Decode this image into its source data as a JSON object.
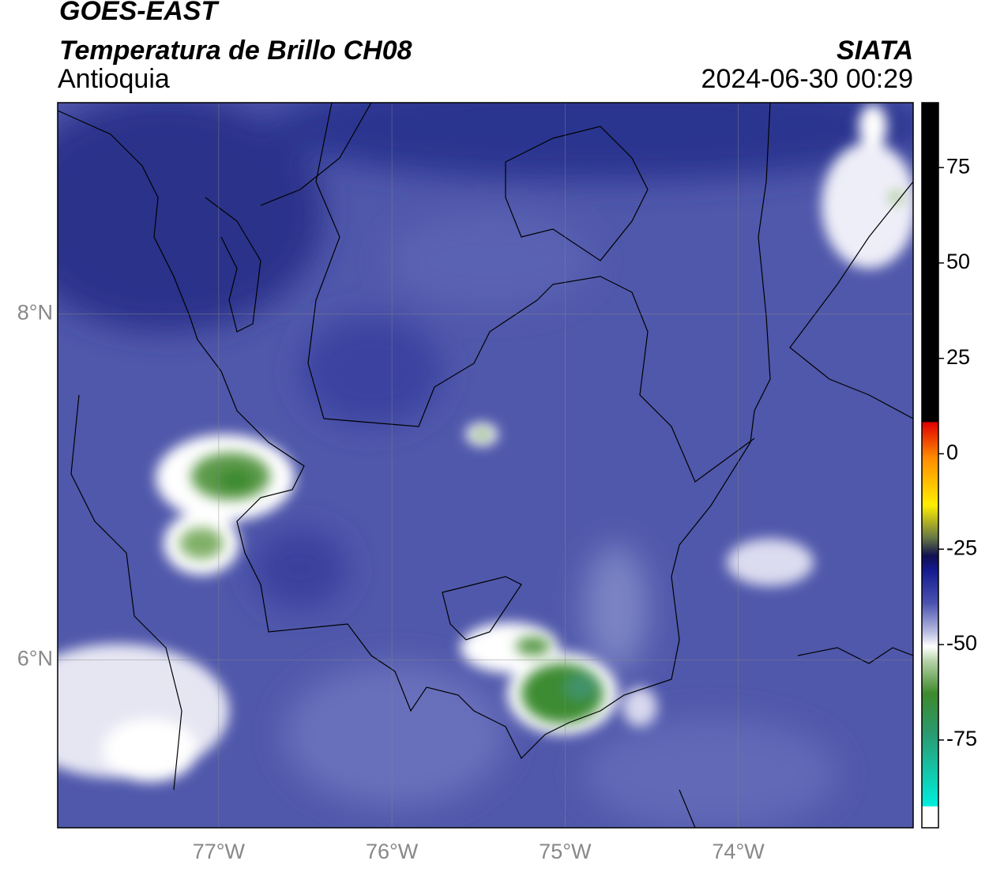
{
  "map": {
    "title": "GOES-EAST",
    "subtitle": "Temperatura de Brillo CH08",
    "region": "Antioquia",
    "source": "SIATA",
    "timestamp": "2024-06-30 00:29",
    "xlim": [
      -77.93,
      -72.99
    ],
    "ylim": [
      5.03,
      9.22
    ],
    "xticks": [
      {
        "value": -77,
        "label": "77°W"
      },
      {
        "value": -76,
        "label": "76°W"
      },
      {
        "value": -75,
        "label": "75°W"
      },
      {
        "value": -74,
        "label": "74°W"
      }
    ],
    "yticks": [
      {
        "value": 6,
        "label": "6°N"
      },
      {
        "value": 8,
        "label": "8°N"
      }
    ],
    "grid": true,
    "colorbar": {
      "lim": [
        -98,
        92
      ],
      "ticks": [
        -75,
        -50,
        -25,
        0,
        25,
        50,
        75
      ]
    }
  }
}
